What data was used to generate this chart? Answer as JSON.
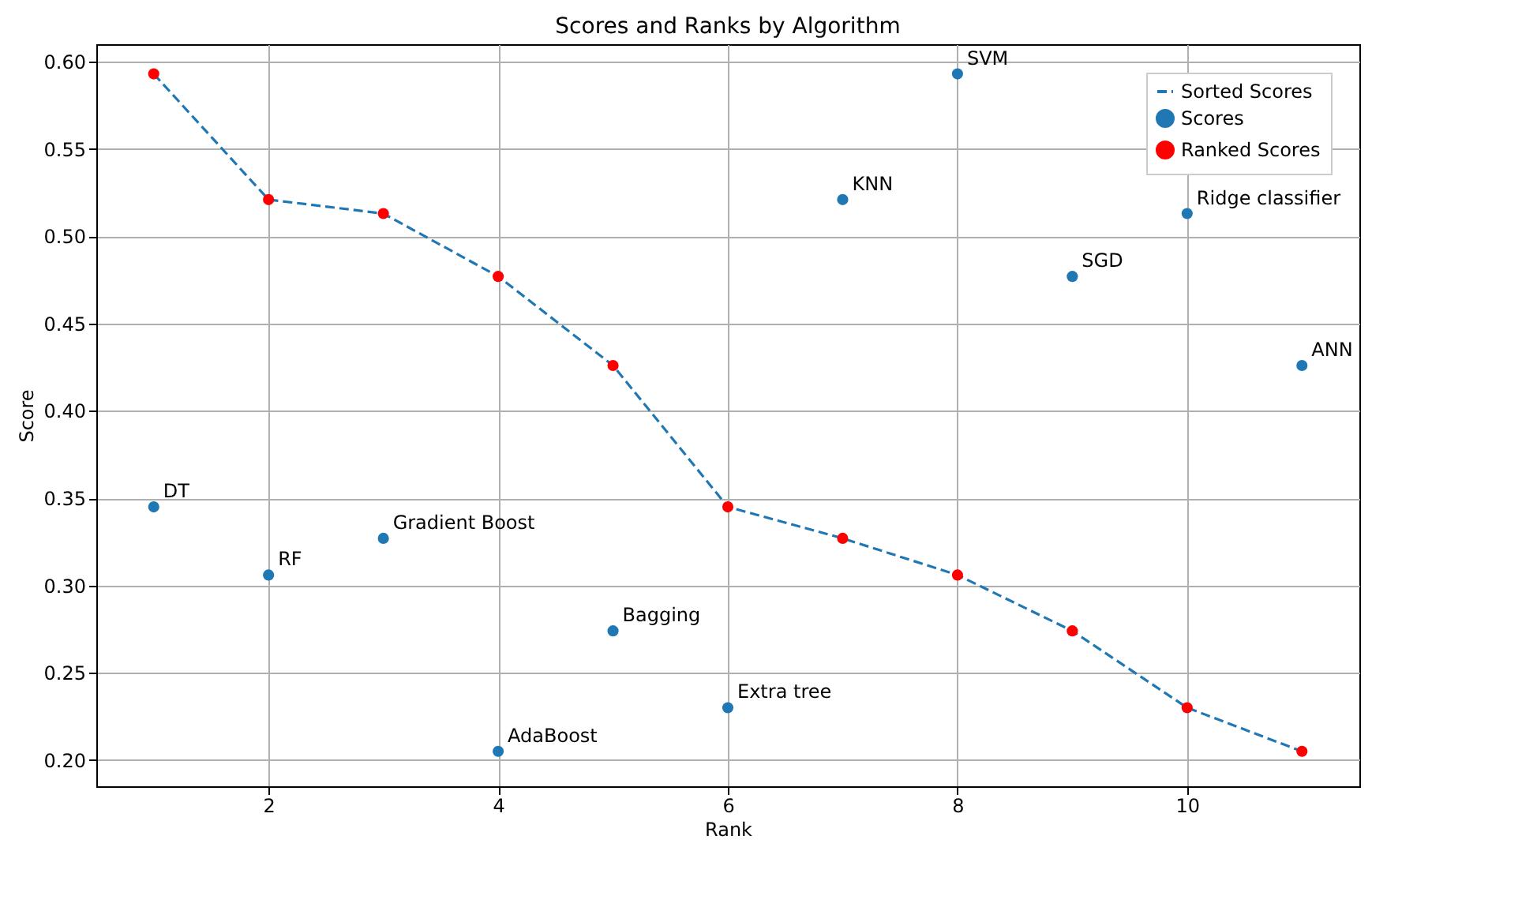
{
  "chart_data": {
    "type": "scatter",
    "title": "Scores and Ranks by Algorithm",
    "xlabel": "Rank",
    "ylabel": "Score",
    "x": [
      1,
      2,
      3,
      4,
      5,
      6,
      7,
      8,
      9,
      10,
      11
    ],
    "series": [
      {
        "name": "Sorted Scores",
        "type": "line",
        "line_style": "dashed",
        "marker": "none",
        "color": "#1f77b4",
        "values": [
          0.593,
          0.521,
          0.513,
          0.477,
          0.426,
          0.345,
          0.327,
          0.306,
          0.274,
          0.23,
          0.205
        ]
      },
      {
        "name": "Scores",
        "color": "#1f77b4",
        "values": [
          0.345,
          0.306,
          0.327,
          0.205,
          0.274,
          0.23,
          0.521,
          0.593,
          0.477,
          0.513,
          0.426
        ]
      },
      {
        "name": "Ranked Scores",
        "color": "#ff0000",
        "values": [
          0.593,
          0.521,
          0.513,
          0.477,
          0.426,
          0.345,
          0.327,
          0.306,
          0.274,
          0.23,
          0.205
        ]
      }
    ],
    "marker": "circle",
    "annotations": [
      {
        "text": "DT",
        "x": 1,
        "y": 0.345
      },
      {
        "text": "RF",
        "x": 2,
        "y": 0.306
      },
      {
        "text": "Gradient Boost",
        "x": 3,
        "y": 0.327
      },
      {
        "text": "AdaBoost",
        "x": 4,
        "y": 0.205
      },
      {
        "text": "Bagging",
        "x": 5,
        "y": 0.274
      },
      {
        "text": "Extra tree",
        "x": 6,
        "y": 0.23
      },
      {
        "text": "KNN",
        "x": 7,
        "y": 0.521
      },
      {
        "text": "SVM",
        "x": 8,
        "y": 0.593
      },
      {
        "text": "SGD",
        "x": 9,
        "y": 0.477
      },
      {
        "text": "Ridge classifier",
        "x": 10,
        "y": 0.513
      },
      {
        "text": "ANN",
        "x": 11,
        "y": 0.426
      }
    ],
    "xlim": [
      0.5,
      11.5
    ],
    "xticks": [
      2,
      4,
      6,
      8,
      10
    ],
    "ylim": [
      0.185,
      0.61
    ],
    "yticks": [
      {
        "value": 0.2,
        "label": "0.20"
      },
      {
        "value": 0.25,
        "label": "0.25"
      },
      {
        "value": 0.3,
        "label": "0.30"
      },
      {
        "value": 0.35,
        "label": "0.35"
      },
      {
        "value": 0.4,
        "label": "0.40"
      },
      {
        "value": 0.45,
        "label": "0.45"
      },
      {
        "value": 0.5,
        "label": "0.50"
      },
      {
        "value": 0.55,
        "label": "0.55"
      },
      {
        "value": 0.6,
        "label": "0.60"
      }
    ],
    "grid": true,
    "legend": "top right"
  }
}
